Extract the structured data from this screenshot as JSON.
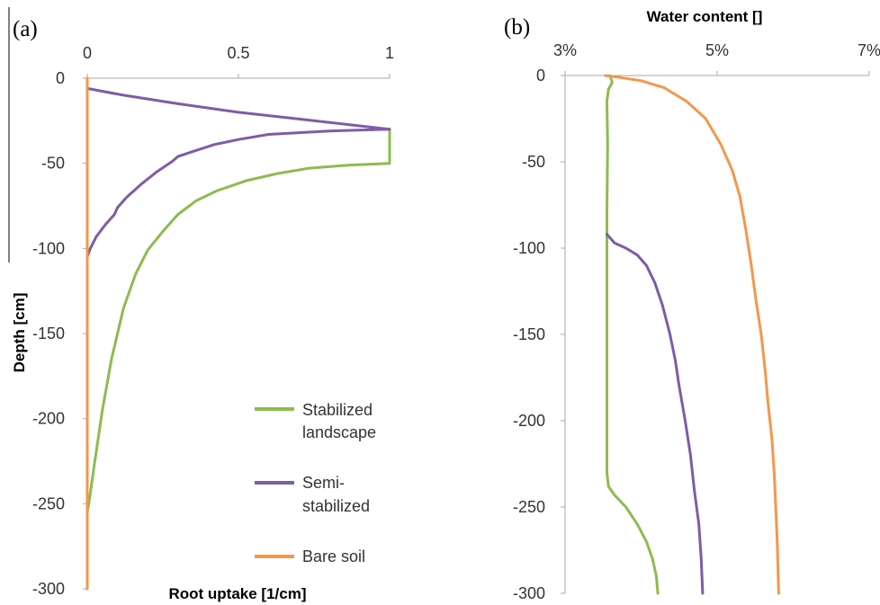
{
  "chart_data": [
    {
      "panel": "(a)",
      "type": "line",
      "xlabel": "Root uptake [1/cm]",
      "ylabel": "Depth [cm]",
      "xlim": [
        0,
        1
      ],
      "ylim": [
        -300,
        0
      ],
      "x_ticks": [
        "0",
        "0.5",
        "1"
      ],
      "x_tick_values": [
        0,
        0.5,
        1
      ],
      "y_ticks": [
        "0",
        "-50",
        "-100",
        "-150",
        "-200",
        "-250",
        "-300"
      ],
      "y_tick_values": [
        0,
        -50,
        -100,
        -150,
        -200,
        -250,
        -300
      ],
      "legend": {
        "position": "bottom-right"
      },
      "series": [
        {
          "name": "Stabilized landscape",
          "color": "#8cbc4f",
          "points": [
            [
              1,
              -30
            ],
            [
              1,
              -50
            ],
            [
              0.87,
              -51
            ],
            [
              0.73,
              -53
            ],
            [
              0.63,
              -56
            ],
            [
              0.53,
              -60
            ],
            [
              0.43,
              -66
            ],
            [
              0.36,
              -72
            ],
            [
              0.3,
              -80
            ],
            [
              0.25,
              -90
            ],
            [
              0.2,
              -101
            ],
            [
              0.16,
              -115
            ],
            [
              0.12,
              -135
            ],
            [
              0.08,
              -165
            ],
            [
              0.05,
              -195
            ],
            [
              0.025,
              -225
            ],
            [
              0.005,
              -250
            ],
            [
              0,
              -255
            ]
          ]
        },
        {
          "name": "Semi-stabilized",
          "color": "#7e5ca6",
          "points": [
            [
              0,
              -6
            ],
            [
              0.12,
              -10
            ],
            [
              0.3,
              -15
            ],
            [
              0.5,
              -20
            ],
            [
              0.7,
              -24
            ],
            [
              0.9,
              -28
            ],
            [
              1,
              -30
            ],
            [
              0.8,
              -31
            ],
            [
              0.6,
              -33
            ],
            [
              0.5,
              -36
            ],
            [
              0.42,
              -39
            ],
            [
              0.35,
              -43
            ],
            [
              0.3,
              -46
            ],
            [
              0.28,
              -49
            ],
            [
              0.23,
              -55
            ],
            [
              0.18,
              -62
            ],
            [
              0.13,
              -70
            ],
            [
              0.1,
              -76
            ],
            [
              0.09,
              -80
            ],
            [
              0.06,
              -86
            ],
            [
              0.03,
              -93
            ],
            [
              0.01,
              -100
            ],
            [
              0,
              -105
            ]
          ]
        },
        {
          "name": "Bare soil",
          "color": "#f4974a",
          "points": [
            [
              0,
              0
            ],
            [
              0,
              -300
            ]
          ]
        }
      ]
    },
    {
      "panel": "(b)",
      "type": "line",
      "xlabel": "Water content []",
      "ylabel": "",
      "xlim": [
        0.03,
        0.07
      ],
      "ylim": [
        -300,
        0
      ],
      "x_ticks": [
        "3%",
        "5%",
        "7%"
      ],
      "x_tick_values": [
        0.03,
        0.05,
        0.07
      ],
      "y_ticks": [
        "0",
        "-50",
        "-100",
        "-150",
        "-200",
        "-250",
        "-300"
      ],
      "y_tick_values": [
        0,
        -50,
        -100,
        -150,
        -200,
        -250,
        -300
      ],
      "series": [
        {
          "name": "Stabilized landscape",
          "color": "#8cbc4f",
          "points": [
            [
              0.0359,
              0
            ],
            [
              0.0362,
              -4
            ],
            [
              0.0357,
              -8
            ],
            [
              0.0355,
              -15
            ],
            [
              0.0356,
              -40
            ],
            [
              0.0355,
              -80
            ],
            [
              0.0355,
              -150
            ],
            [
              0.0355,
              -230
            ],
            [
              0.0357,
              -238
            ],
            [
              0.0365,
              -243
            ],
            [
              0.038,
              -250
            ],
            [
              0.0395,
              -260
            ],
            [
              0.0407,
              -270
            ],
            [
              0.0415,
              -280
            ],
            [
              0.042,
              -290
            ],
            [
              0.0422,
              -300
            ]
          ]
        },
        {
          "name": "Semi-stabilized",
          "color": "#7e5ca6",
          "points": [
            [
              0.0355,
              -92
            ],
            [
              0.0365,
              -97
            ],
            [
              0.038,
              -100
            ],
            [
              0.0395,
              -104
            ],
            [
              0.0407,
              -110
            ],
            [
              0.0418,
              -120
            ],
            [
              0.0428,
              -133
            ],
            [
              0.0438,
              -150
            ],
            [
              0.0445,
              -165
            ],
            [
              0.045,
              -180
            ],
            [
              0.0458,
              -200
            ],
            [
              0.0465,
              -220
            ],
            [
              0.047,
              -240
            ],
            [
              0.0476,
              -260
            ],
            [
              0.0479,
              -280
            ],
            [
              0.0481,
              -300
            ]
          ]
        },
        {
          "name": "Bare soil",
          "color": "#f4974a",
          "points": [
            [
              0.0353,
              0
            ],
            [
              0.037,
              -1
            ],
            [
              0.04,
              -3
            ],
            [
              0.043,
              -7
            ],
            [
              0.046,
              -15
            ],
            [
              0.0485,
              -25
            ],
            [
              0.0505,
              -40
            ],
            [
              0.052,
              -55
            ],
            [
              0.053,
              -70
            ],
            [
              0.0538,
              -90
            ],
            [
              0.0545,
              -110
            ],
            [
              0.0551,
              -130
            ],
            [
              0.0558,
              -150
            ],
            [
              0.0563,
              -170
            ],
            [
              0.0567,
              -190
            ],
            [
              0.0572,
              -210
            ],
            [
              0.0575,
              -230
            ],
            [
              0.0577,
              -250
            ],
            [
              0.0579,
              -270
            ],
            [
              0.058,
              -285
            ],
            [
              0.0581,
              -300
            ]
          ]
        }
      ]
    }
  ]
}
